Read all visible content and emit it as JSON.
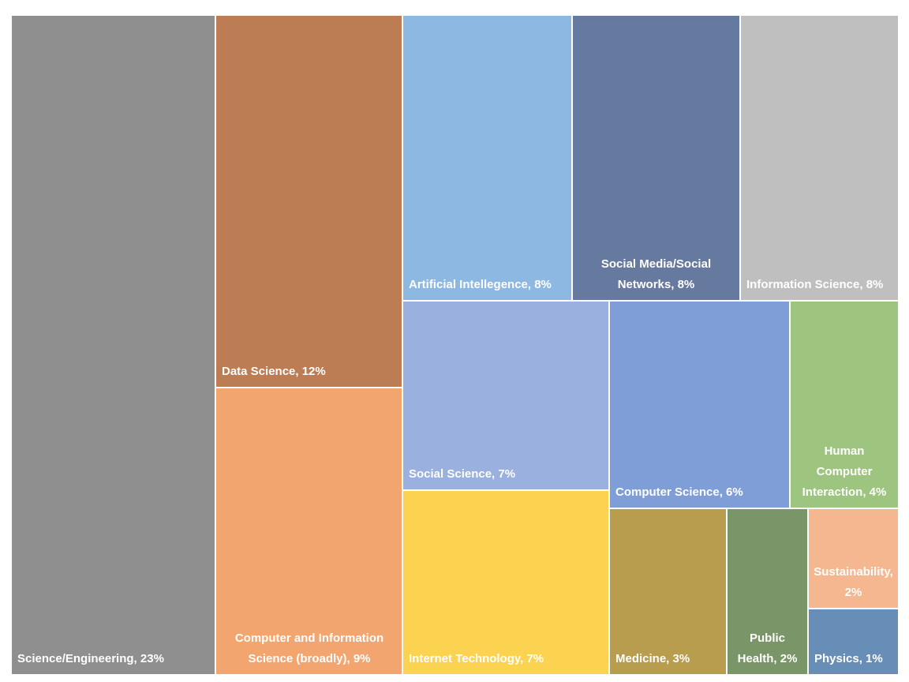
{
  "chart_data": {
    "type": "treemap",
    "title": "",
    "nodes": [
      {
        "id": "science-engineering",
        "name": "Science/Engineering",
        "value": 23,
        "label": "Science/Engineering, 23%",
        "color": "#8f8f8f"
      },
      {
        "id": "data-science",
        "name": "Data Science",
        "value": 12,
        "label": "Data Science, 12%",
        "color": "#bc7d54"
      },
      {
        "id": "computer-and-information-science",
        "name": "Computer and Information Science (broadly)",
        "value": 9,
        "label": "Computer and Information Science (broadly), 9%",
        "color": "#f3a56f"
      },
      {
        "id": "artificial-intellegence",
        "name": "Artificial Intellegence",
        "value": 8,
        "label": "Artificial Intellegence, 8%",
        "color": "#8db8e2"
      },
      {
        "id": "social-media",
        "name": "Social Media/Social Networks",
        "value": 8,
        "label": "Social Media/Social Networks, 8%",
        "color": "#66799f"
      },
      {
        "id": "information-science",
        "name": "Information Science",
        "value": 8,
        "label": "Information Science, 8%",
        "color": "#bfbfbf"
      },
      {
        "id": "social-science",
        "name": "Social Science",
        "value": 7,
        "label": "Social Science, 7%",
        "color": "#9ab0de"
      },
      {
        "id": "internet-technology",
        "name": "Internet Technology",
        "value": 7,
        "label": "Internet Technology, 7%",
        "color": "#fcd351"
      },
      {
        "id": "computer-science",
        "name": "Computer Science",
        "value": 6,
        "label": "Computer Science, 6%",
        "color": "#7f9dd6"
      },
      {
        "id": "human-computer-interaction",
        "name": "Human Computer Interaction",
        "value": 4,
        "label": "Human Computer Interaction, 4%",
        "color": "#9dc57f"
      },
      {
        "id": "medicine",
        "name": "Medicine",
        "value": 3,
        "label": "Medicine, 3%",
        "color": "#b89d4e"
      },
      {
        "id": "public-health",
        "name": "Public Health",
        "value": 2,
        "label": "Public Health, 2%",
        "color": "#7a9568"
      },
      {
        "id": "sustainability",
        "name": "Sustainability",
        "value": 2,
        "label": "Sustainability, 2%",
        "color": "#f4b78f"
      },
      {
        "id": "physics",
        "name": "Physics",
        "value": 1,
        "label": "Physics, 1%",
        "color": "#678eb6"
      }
    ]
  }
}
